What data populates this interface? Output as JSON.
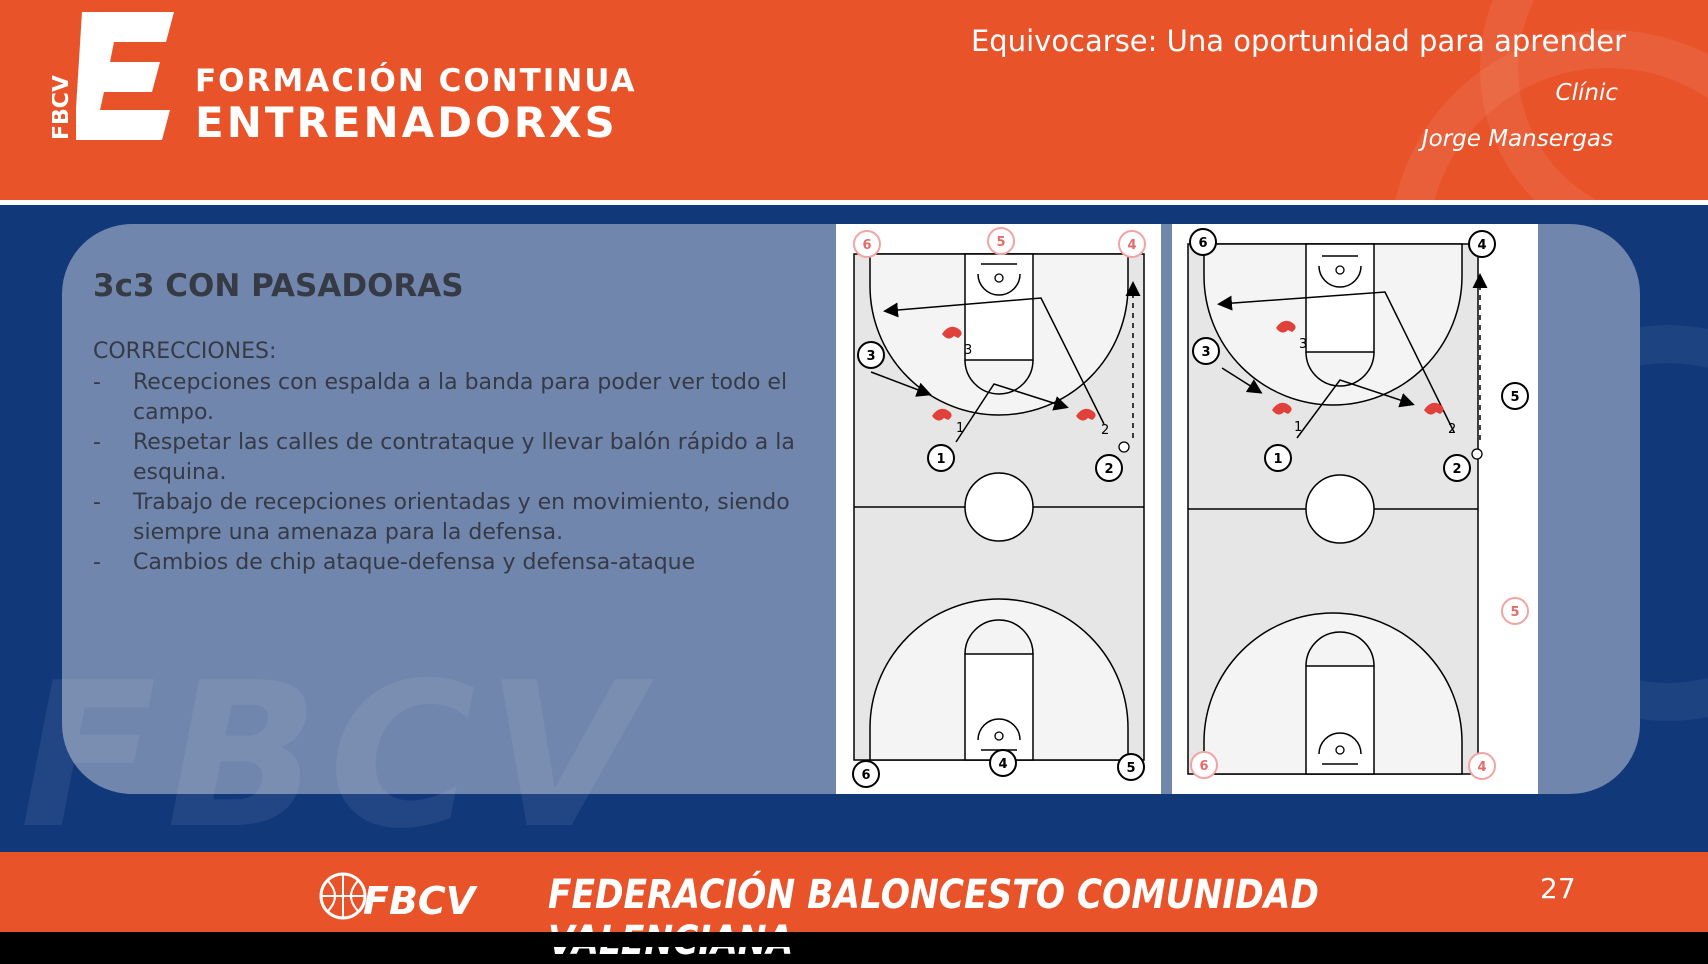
{
  "header": {
    "logo_text": "FBCV",
    "brand_line1": "FORMACIÓN CONTINUA",
    "brand_line2": "ENTRENADORXS",
    "talk_title": "Equivocarse: Una oportunidad para aprender",
    "talk_type": "Clínic",
    "talk_author": "Jorge Mansergas"
  },
  "slide": {
    "title": "3c3 CON PASADORAS",
    "corrections_heading": "CORRECCIONES:",
    "bullets": [
      "Recepciones con espalda a la banda para poder ver todo el campo.",
      "Respetar las calles de contrataque y llevar balón rápido a la esquina.",
      "Trabajo de recepciones orientadas y en movimiento, siendo siempre una amenaza para la defensa.",
      "Cambios de chip ataque-defensa y defensa-ataque"
    ],
    "bullet_marker": "-"
  },
  "diagrams": {
    "left": {
      "passers_red": [
        "6",
        "5",
        "4"
      ],
      "passers_black_bottom": [
        "6",
        "4",
        "5"
      ],
      "players": [
        "1",
        "2",
        "3"
      ],
      "defenders": [
        "1",
        "2",
        "3"
      ]
    },
    "right": {
      "passers_black_top": [
        "6",
        "4"
      ],
      "passers_black_side": [
        "5"
      ],
      "passers_red_side": [
        "5"
      ],
      "passers_red_bottom": [
        "6",
        "4"
      ],
      "players": [
        "1",
        "2",
        "3"
      ],
      "defenders": [
        "1",
        "2",
        "3"
      ]
    }
  },
  "footer": {
    "logo_text": "FBCV",
    "federation": "FEDERACIÓN BALONCESTO COMUNIDAD VALENCIANA",
    "page_number": "27"
  },
  "colors": {
    "orange": "#e8532a",
    "navy": "#11397a",
    "panel": "#7086ad",
    "text_dark": "#363a45",
    "red_marker": "#e56a6a"
  }
}
